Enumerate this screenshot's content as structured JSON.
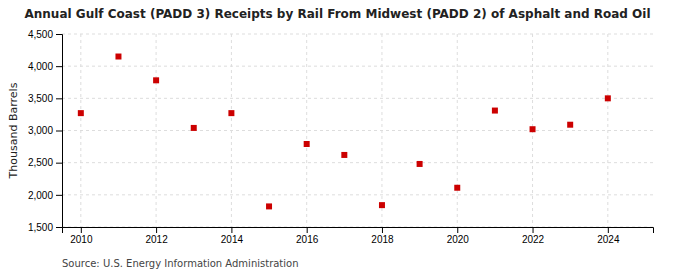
{
  "chart_data": {
    "type": "scatter",
    "title": "Annual Gulf Coast (PADD 3) Receipts by Rail From Midwest (PADD 2) of Asphalt and Road Oil",
    "y_label": "Thousand Barrels",
    "annotations": [
      "Source: U.S. Energy Information Administration"
    ],
    "x": [
      2010,
      2011,
      2012,
      2013,
      2014,
      2015,
      2016,
      2017,
      2018,
      2019,
      2020,
      2021,
      2022,
      2023,
      2024
    ],
    "values": [
      3270,
      4150,
      3780,
      3040,
      3270,
      1820,
      2790,
      2620,
      1840,
      2480,
      2110,
      3310,
      3020,
      3090,
      3500
    ],
    "color": "#cc0000",
    "marker": "square",
    "xlim": [
      2009.5,
      2025.2
    ],
    "xticks": [
      2010,
      2012,
      2014,
      2016,
      2018,
      2020,
      2022,
      2024
    ],
    "ylim": [
      1500,
      4500
    ],
    "yticks": [
      {
        "value": 1500,
        "label": "1,500"
      },
      {
        "value": 2000,
        "label": "2,000"
      },
      {
        "value": 2500,
        "label": "2,500"
      },
      {
        "value": 3000,
        "label": "3,000"
      },
      {
        "value": 3500,
        "label": "3,500"
      },
      {
        "value": 4000,
        "label": "4,000"
      },
      {
        "value": 4500,
        "label": "4,500"
      }
    ],
    "grid": true
  }
}
